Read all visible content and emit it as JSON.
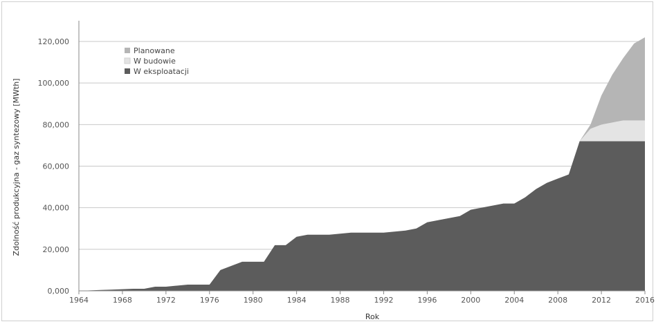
{
  "chart_data": {
    "type": "area",
    "stacked": true,
    "xlabel": "Rok",
    "ylabel": "Zdolność produkcyjna - gaz syntezowy [MWth]",
    "xlim": [
      1964,
      2016
    ],
    "ylim": [
      0,
      130000
    ],
    "x_ticks": [
      1964,
      1968,
      1972,
      1976,
      1980,
      1984,
      1988,
      1992,
      1996,
      2000,
      2004,
      2008,
      2012,
      2016
    ],
    "y_ticks": [
      0,
      20000,
      40000,
      60000,
      80000,
      100000,
      120000
    ],
    "y_tick_labels": [
      "0,000",
      "20,000",
      "40,000",
      "60,000",
      "80,000",
      "100,000",
      "120,000"
    ],
    "grid": "horizontal",
    "legend_position": "top-left",
    "x": [
      1964,
      1965,
      1966,
      1967,
      1968,
      1969,
      1970,
      1971,
      1972,
      1973,
      1974,
      1975,
      1976,
      1977,
      1978,
      1979,
      1980,
      1981,
      1982,
      1983,
      1984,
      1985,
      1986,
      1987,
      1988,
      1989,
      1990,
      1991,
      1992,
      1993,
      1994,
      1995,
      1996,
      1997,
      1998,
      1999,
      2000,
      2001,
      2002,
      2003,
      2004,
      2005,
      2006,
      2007,
      2008,
      2009,
      2010,
      2011,
      2012,
      2013,
      2014,
      2015,
      2016
    ],
    "series": [
      {
        "name": "W eksploatacji",
        "color": "#5c5c5c",
        "values": [
          0,
          200,
          400,
          600,
          800,
          1000,
          1000,
          2000,
          2000,
          2500,
          3000,
          3000,
          3000,
          10000,
          12000,
          14000,
          14000,
          14000,
          22000,
          22000,
          26000,
          27000,
          27000,
          27000,
          27500,
          28000,
          28000,
          28000,
          28000,
          28500,
          29000,
          30000,
          33000,
          34000,
          35000,
          36000,
          39000,
          40000,
          41000,
          42000,
          42000,
          45000,
          49000,
          52000,
          54000,
          56000,
          72000,
          72000,
          72000,
          72000,
          72000,
          72000,
          72000
        ]
      },
      {
        "name": "W budowie",
        "color": "#e4e4e4",
        "values": [
          0,
          0,
          0,
          0,
          0,
          0,
          0,
          0,
          0,
          0,
          0,
          0,
          0,
          0,
          0,
          0,
          0,
          0,
          0,
          0,
          0,
          0,
          0,
          0,
          0,
          0,
          0,
          0,
          0,
          0,
          0,
          0,
          0,
          0,
          0,
          0,
          0,
          0,
          0,
          0,
          0,
          0,
          0,
          0,
          0,
          0,
          0,
          6000,
          8000,
          9000,
          10000,
          10000,
          10000
        ]
      },
      {
        "name": "Planowane",
        "color": "#b5b5b5",
        "values": [
          0,
          0,
          0,
          0,
          0,
          0,
          0,
          0,
          0,
          0,
          0,
          0,
          0,
          0,
          0,
          0,
          0,
          0,
          0,
          0,
          0,
          0,
          0,
          0,
          0,
          0,
          0,
          0,
          0,
          0,
          0,
          0,
          0,
          0,
          0,
          0,
          0,
          0,
          0,
          0,
          0,
          0,
          0,
          0,
          0,
          0,
          0,
          2000,
          14000,
          23000,
          30000,
          37000,
          40000
        ]
      }
    ],
    "legend_order": [
      "Planowane",
      "W budowie",
      "W eksploatacji"
    ]
  },
  "colors": {
    "grid": "#c8c8c8",
    "axis": "#888888",
    "frame": "#cfcfcf"
  }
}
